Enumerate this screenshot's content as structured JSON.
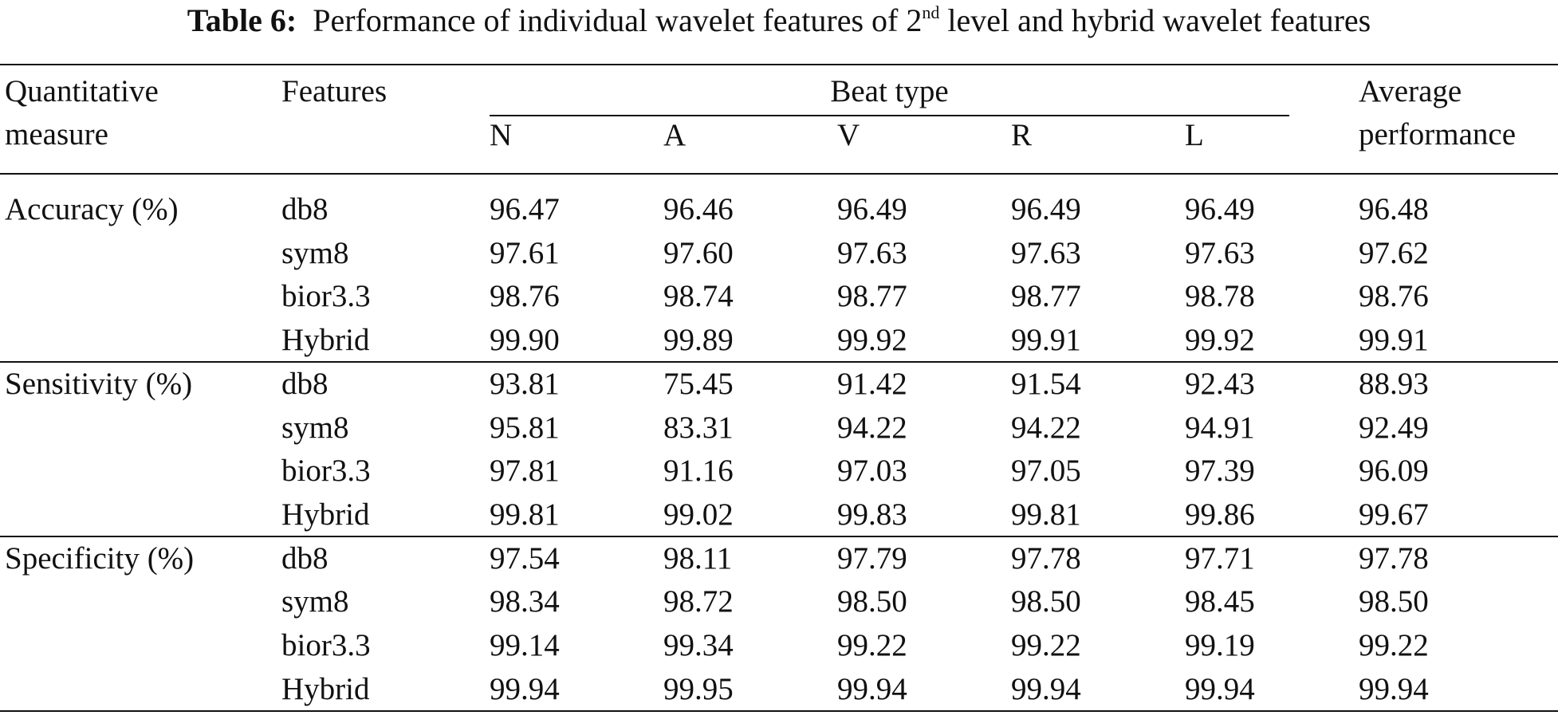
{
  "title": {
    "label": "Table 6:",
    "text": "Performance of individual wavelet features of 2",
    "superscript": "nd",
    "text_end": " level and hybrid wavelet features"
  },
  "table": {
    "header": {
      "measure": [
        "Quantitative",
        "measure"
      ],
      "features": "Features",
      "beat_type": "Beat type",
      "beats": [
        "N",
        "A",
        "V",
        "R",
        "L"
      ],
      "average": [
        "Average",
        "performance"
      ]
    },
    "groups": [
      {
        "measure": "Accuracy (%)",
        "rows": [
          [
            "db8",
            "96.47",
            "96.46",
            "96.49",
            "96.49",
            "96.49",
            "96.48"
          ],
          [
            "sym8",
            "97.61",
            "97.60",
            "97.63",
            "97.63",
            "97.63",
            "97.62"
          ],
          [
            "bior3.3",
            "98.76",
            "98.74",
            "98.77",
            "98.77",
            "98.78",
            "98.76"
          ],
          [
            "Hybrid",
            "99.90",
            "99.89",
            "99.92",
            "99.91",
            "99.92",
            "99.91"
          ]
        ]
      },
      {
        "measure": "Sensitivity (%)",
        "rows": [
          [
            "db8",
            "93.81",
            "75.45",
            "91.42",
            "91.54",
            "92.43",
            "88.93"
          ],
          [
            "sym8",
            "95.81",
            "83.31",
            "94.22",
            "94.22",
            "94.91",
            "92.49"
          ],
          [
            "bior3.3",
            "97.81",
            "91.16",
            "97.03",
            "97.05",
            "97.39",
            "96.09"
          ],
          [
            "Hybrid",
            "99.81",
            "99.02",
            "99.83",
            "99.81",
            "99.86",
            "99.67"
          ]
        ]
      },
      {
        "measure": "Specificity (%)",
        "rows": [
          [
            "db8",
            "97.54",
            "98.11",
            "97.79",
            "97.78",
            "97.71",
            "97.78"
          ],
          [
            "sym8",
            "98.34",
            "98.72",
            "98.50",
            "98.50",
            "98.45",
            "98.50"
          ],
          [
            "bior3.3",
            "99.14",
            "99.34",
            "99.22",
            "99.22",
            "99.19",
            "99.22"
          ],
          [
            "Hybrid",
            "99.94",
            "99.95",
            "99.94",
            "99.94",
            "99.94",
            "99.94"
          ]
        ]
      }
    ]
  }
}
